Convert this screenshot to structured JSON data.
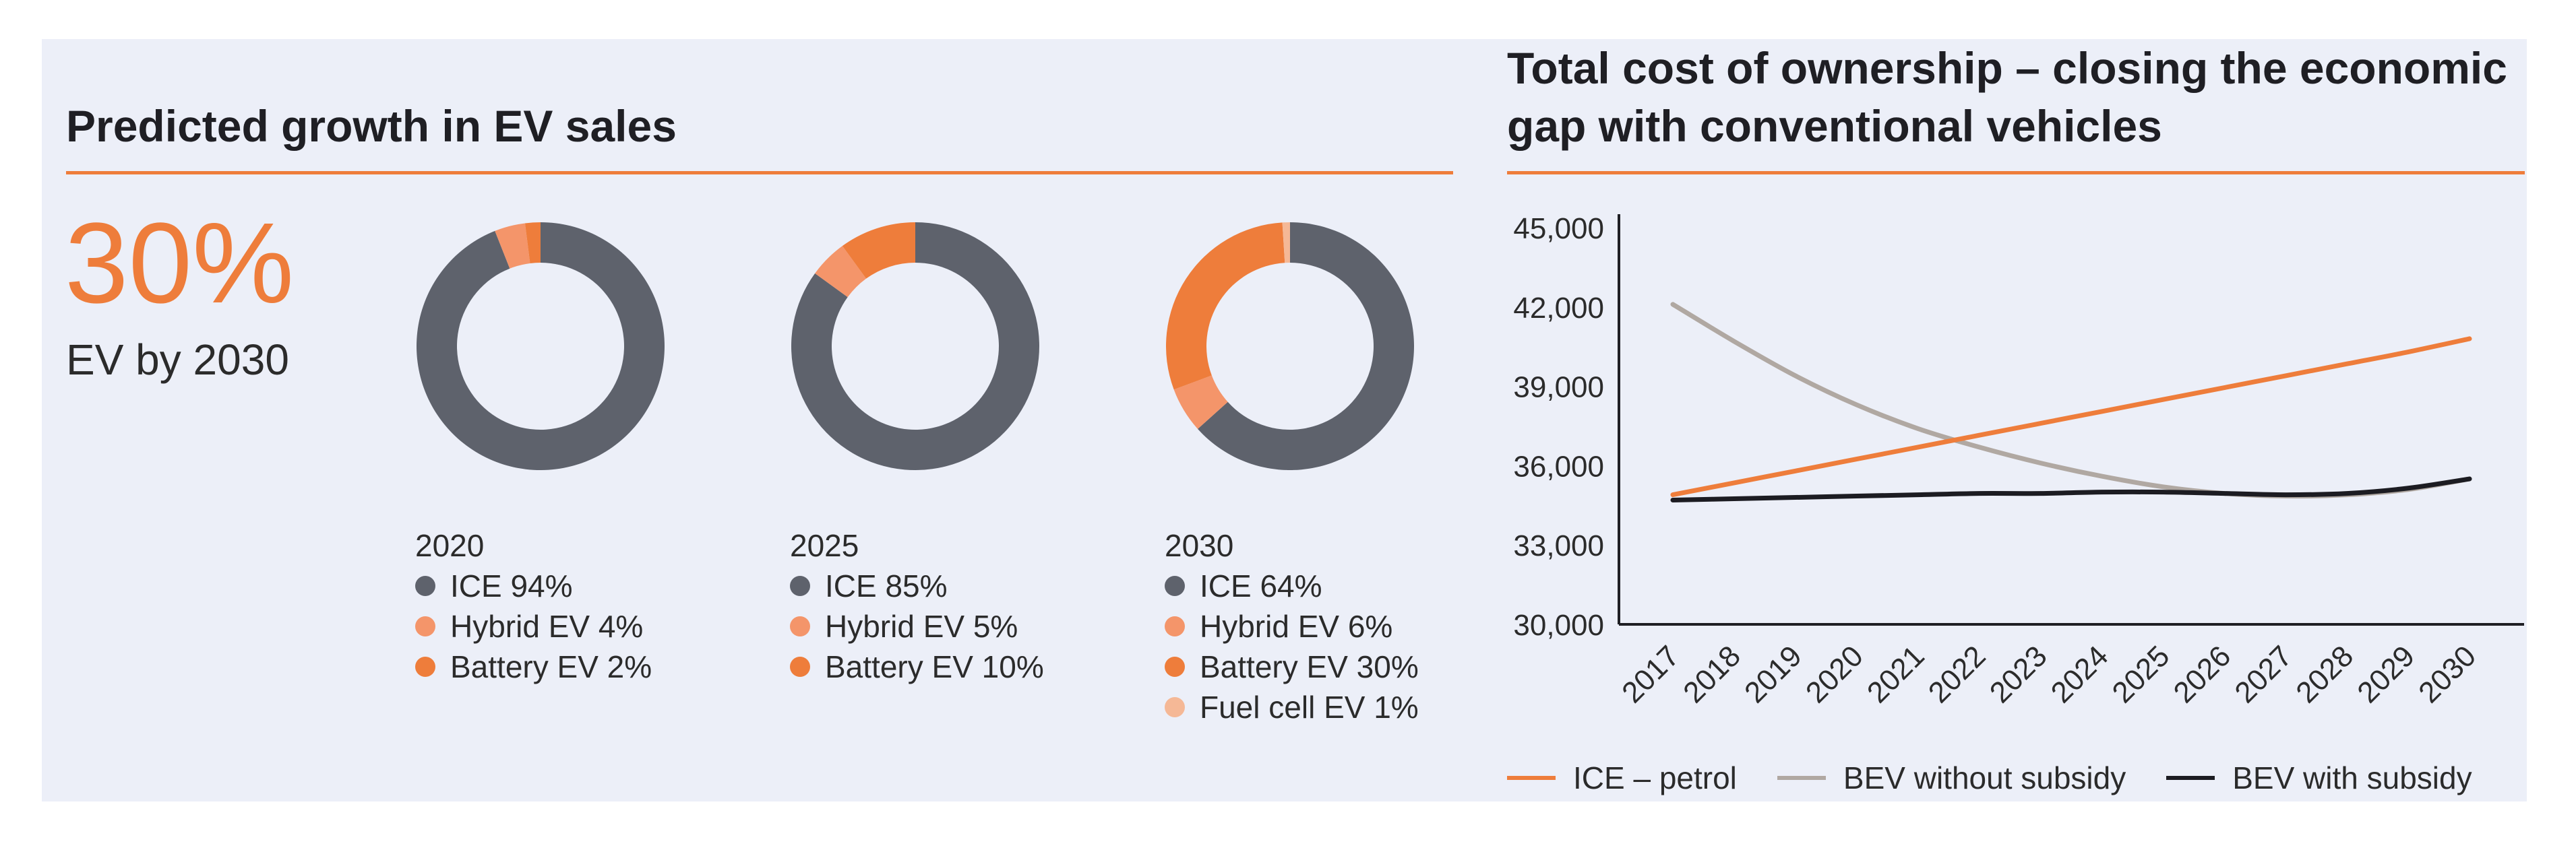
{
  "left": {
    "title": "Predicted growth in EV sales",
    "big_stat": "30%",
    "sub_stat": "EV by 2030"
  },
  "right": {
    "title": "Total cost of ownership – closing the economic gap with conventional vehicles"
  },
  "colors": {
    "ice": "#5e626c",
    "hybrid": "#f4956a",
    "battery": "#ee7d3b",
    "fuelcell": "#f5b896",
    "bev_no_subsidy": "#b0a8a2",
    "bev_subsidy": "#1c1c22",
    "accent": "#ee7d3b"
  },
  "chart_data": [
    {
      "type": "pie",
      "title": "2020",
      "slices": [
        {
          "label": "ICE 94%",
          "value": 94,
          "color_key": "ice"
        },
        {
          "label": "Hybrid EV 4%",
          "value": 4,
          "color_key": "hybrid"
        },
        {
          "label": "Battery EV 2%",
          "value": 2,
          "color_key": "battery"
        }
      ]
    },
    {
      "type": "pie",
      "title": "2025",
      "slices": [
        {
          "label": "ICE 85%",
          "value": 85,
          "color_key": "ice"
        },
        {
          "label": "Hybrid EV 5%",
          "value": 5,
          "color_key": "hybrid"
        },
        {
          "label": "Battery EV 10%",
          "value": 10,
          "color_key": "battery"
        }
      ]
    },
    {
      "type": "pie",
      "title": "2030",
      "slices": [
        {
          "label": "ICE 64%",
          "value": 64,
          "color_key": "ice"
        },
        {
          "label": "Hybrid EV 6%",
          "value": 6,
          "color_key": "hybrid"
        },
        {
          "label": "Battery EV 30%",
          "value": 30,
          "color_key": "battery"
        },
        {
          "label": "Fuel cell EV 1%",
          "value": 1,
          "color_key": "fuelcell"
        }
      ]
    },
    {
      "type": "line",
      "title": "Total cost of ownership – closing the economic gap with conventional vehicles",
      "x": [
        "2017",
        "2018",
        "2019",
        "2020",
        "2021",
        "2022",
        "2023",
        "2024",
        "2025",
        "2026",
        "2027",
        "2028",
        "2029",
        "2030"
      ],
      "ylim": [
        30000,
        45000
      ],
      "yticks": [
        "45,000",
        "42,000",
        "39,000",
        "36,000",
        "33,000",
        "30,000"
      ],
      "ytick_values": [
        45000,
        42000,
        39000,
        36000,
        33000,
        30000
      ],
      "series": [
        {
          "name": "ICE – petrol",
          "color_key": "ice_petrol",
          "values": [
            34900,
            35350,
            35800,
            36250,
            36700,
            37150,
            37600,
            38050,
            38500,
            38950,
            39400,
            39850,
            40300,
            40800
          ]
        },
        {
          "name": "BEV without subsidy",
          "color_key": "bev_no_subsidy",
          "values": [
            42100,
            40700,
            39400,
            38300,
            37400,
            36700,
            36100,
            35600,
            35200,
            34950,
            34850,
            34900,
            35100,
            35500
          ]
        },
        {
          "name": "BEV with subsidy",
          "color_key": "bev_subsidy",
          "values": [
            34700,
            34750,
            34800,
            34850,
            34900,
            34950,
            34950,
            35000,
            35000,
            34950,
            34900,
            34950,
            35150,
            35500
          ]
        }
      ]
    }
  ]
}
